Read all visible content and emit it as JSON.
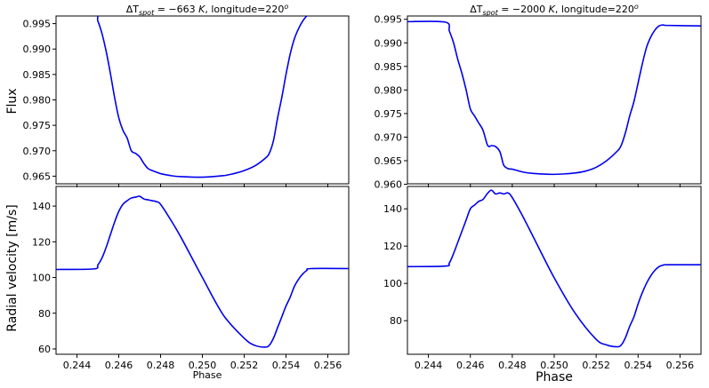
{
  "colors": {
    "line": "#0000ee"
  },
  "chart_data": [
    {
      "id": "left-flux",
      "type": "line",
      "title": "ΔT_spot = −663 K, longitude=220°",
      "title_parts": {
        "delta": "ΔT",
        "sub": "spot",
        "value": " = −663 ",
        "unit": "K",
        "rest": ", longitude=220",
        "sup": "o"
      },
      "xlabel": "",
      "ylabel": "Flux",
      "xlim": [
        0.243,
        0.257
      ],
      "ylim": [
        0.9635,
        0.9965
      ],
      "xticks": [
        0.244,
        0.246,
        0.248,
        0.25,
        0.252,
        0.254,
        0.256
      ],
      "xtick_labels": [],
      "yticks": [
        0.965,
        0.97,
        0.975,
        0.98,
        0.985,
        0.99,
        0.995
      ],
      "ytick_labels": [
        "0.965",
        "0.970",
        "0.975",
        "0.980",
        "0.985",
        "0.990",
        "0.995"
      ],
      "series": [
        {
          "x": [
            0.243,
            0.2448,
            0.245,
            0.2452,
            0.2454,
            0.2456,
            0.2458,
            0.246,
            0.2462,
            0.2464,
            0.2466,
            0.2468,
            0.247,
            0.2472,
            0.2474,
            0.2476,
            0.2478,
            0.248,
            0.2485,
            0.249,
            0.25,
            0.251,
            0.2515,
            0.252,
            0.2525,
            0.253,
            0.2532,
            0.2534,
            0.2536,
            0.2538,
            0.254,
            0.2542,
            0.2544,
            0.2546,
            0.2548,
            0.255,
            0.2552,
            0.257
          ],
          "y": [
            0.9972,
            0.9971,
            0.9955,
            0.993,
            0.9895,
            0.9852,
            0.9805,
            0.9765,
            0.974,
            0.9725,
            0.97,
            0.9695,
            0.9688,
            0.9675,
            0.9665,
            0.9661,
            0.9658,
            0.9655,
            0.9651,
            0.9649,
            0.9648,
            0.9651,
            0.9655,
            0.9661,
            0.967,
            0.9685,
            0.9695,
            0.972,
            0.9765,
            0.9805,
            0.985,
            0.989,
            0.992,
            0.994,
            0.9955,
            0.9965,
            0.9967,
            0.9967
          ]
        }
      ]
    },
    {
      "id": "left-rv",
      "type": "line",
      "title": "",
      "xlabel": "Phase",
      "ylabel": "Radial velocity [m/s]",
      "xlim": [
        0.243,
        0.257
      ],
      "ylim": [
        57,
        151
      ],
      "xticks": [
        0.244,
        0.246,
        0.248,
        0.25,
        0.252,
        0.254,
        0.256
      ],
      "xtick_labels": [
        "0.244",
        "0.246",
        "0.248",
        "0.250",
        "0.252",
        "0.254",
        "0.256"
      ],
      "yticks": [
        60,
        80,
        100,
        120,
        140
      ],
      "ytick_labels": [
        "60",
        "80",
        "100",
        "120",
        "140"
      ],
      "series": [
        {
          "x": [
            0.243,
            0.2448,
            0.245,
            0.2452,
            0.2454,
            0.2456,
            0.2458,
            0.246,
            0.2462,
            0.2464,
            0.2466,
            0.2468,
            0.247,
            0.2472,
            0.2474,
            0.2476,
            0.2478,
            0.248,
            0.2485,
            0.249,
            0.25,
            0.251,
            0.252,
            0.2525,
            0.253,
            0.2532,
            0.2534,
            0.2536,
            0.2538,
            0.254,
            0.2542,
            0.2544,
            0.2546,
            0.2548,
            0.255,
            0.2552,
            0.257
          ],
          "y": [
            104.5,
            104.8,
            107,
            111,
            117,
            124,
            131,
            137,
            141,
            143,
            144.5,
            145,
            145.5,
            144,
            143.5,
            143,
            142.5,
            141,
            132,
            122,
            100,
            79,
            66,
            62,
            61,
            62,
            66,
            72,
            78,
            84,
            89,
            95,
            99,
            102,
            104,
            105,
            105
          ]
        }
      ]
    },
    {
      "id": "right-flux",
      "type": "line",
      "title": "ΔT_spot = −2000 K, longitude=220°",
      "title_parts": {
        "delta": "ΔT",
        "sub": "spot",
        "value": " = −2000 ",
        "unit": "K",
        "rest": ", longitude=220",
        "sup": "o"
      },
      "xlabel": "",
      "ylabel": "",
      "xlim": [
        0.243,
        0.257
      ],
      "ylim": [
        0.9601,
        0.9957
      ],
      "xticks": [
        0.244,
        0.246,
        0.248,
        0.25,
        0.252,
        0.254,
        0.256
      ],
      "xtick_labels": [],
      "yticks": [
        0.96,
        0.965,
        0.97,
        0.975,
        0.98,
        0.985,
        0.99,
        0.995
      ],
      "ytick_labels": [
        "0.960",
        "0.965",
        "0.970",
        "0.975",
        "0.980",
        "0.985",
        "0.990",
        "0.995"
      ],
      "series": [
        {
          "x": [
            0.243,
            0.2448,
            0.245,
            0.2452,
            0.2454,
            0.2456,
            0.2458,
            0.246,
            0.2462,
            0.2464,
            0.2466,
            0.2468,
            0.2469,
            0.247,
            0.2472,
            0.2474,
            0.2475,
            0.2476,
            0.2478,
            0.248,
            0.2485,
            0.249,
            0.25,
            0.251,
            0.2515,
            0.252,
            0.2525,
            0.253,
            0.2532,
            0.2534,
            0.2536,
            0.2538,
            0.254,
            0.2542,
            0.2544,
            0.2546,
            0.2548,
            0.255,
            0.2552,
            0.2554,
            0.257
          ],
          "y": [
            0.9945,
            0.9944,
            0.9925,
            0.99,
            0.9865,
            0.9835,
            0.98,
            0.976,
            0.9745,
            0.973,
            0.9715,
            0.9685,
            0.968,
            0.9682,
            0.968,
            0.967,
            0.9655,
            0.964,
            0.9633,
            0.9632,
            0.9626,
            0.9623,
            0.9621,
            0.9624,
            0.9628,
            0.9636,
            0.965,
            0.967,
            0.9683,
            0.971,
            0.9745,
            0.9775,
            0.9815,
            0.9855,
            0.989,
            0.9912,
            0.9927,
            0.9936,
            0.9938,
            0.9937,
            0.9936
          ]
        }
      ]
    },
    {
      "id": "right-rv",
      "type": "line",
      "title": "",
      "xlabel": "Phase",
      "ylabel": "",
      "xlim": [
        0.243,
        0.257
      ],
      "ylim": [
        62,
        152
      ],
      "xticks": [
        0.244,
        0.246,
        0.248,
        0.25,
        0.252,
        0.254,
        0.256
      ],
      "xtick_labels": [
        "0.244",
        "0.246",
        "0.248",
        "0.250",
        "0.252",
        "0.254",
        "0.256"
      ],
      "yticks": [
        80,
        100,
        120,
        140
      ],
      "ytick_labels": [
        "80",
        "100",
        "120",
        "140"
      ],
      "series": [
        {
          "x": [
            0.243,
            0.2448,
            0.245,
            0.2452,
            0.2454,
            0.2456,
            0.2458,
            0.246,
            0.2462,
            0.2464,
            0.2466,
            0.2468,
            0.247,
            0.2472,
            0.2474,
            0.2476,
            0.2478,
            0.248,
            0.2485,
            0.249,
            0.25,
            0.251,
            0.252,
            0.2525,
            0.253,
            0.2532,
            0.2534,
            0.2536,
            0.2538,
            0.254,
            0.2542,
            0.2544,
            0.2546,
            0.2548,
            0.255,
            0.2552,
            0.2554,
            0.257
          ],
          "y": [
            109,
            109.3,
            111,
            116,
            122,
            128,
            134,
            140,
            142,
            144,
            145,
            148,
            150,
            148,
            148.5,
            148,
            148.5,
            146,
            136,
            125,
            103,
            84,
            70,
            67,
            66,
            67,
            71,
            77,
            82,
            89,
            95,
            100,
            104,
            107,
            109,
            109.8,
            110,
            110
          ]
        }
      ]
    }
  ]
}
